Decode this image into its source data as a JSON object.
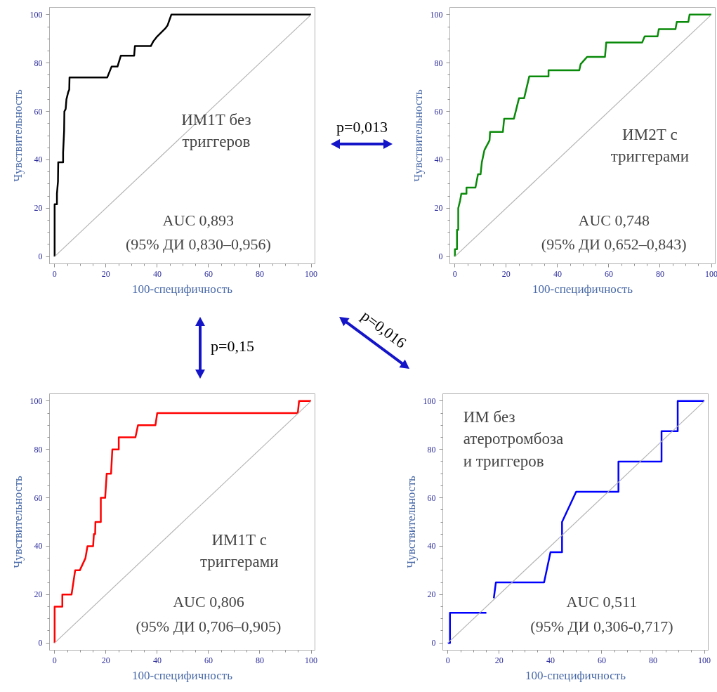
{
  "chart_data": [
    {
      "type": "line",
      "title": "ИМ1Т без\nтриггеров",
      "xlabel": "100-специфичность",
      "ylabel": "Чувствительность",
      "xlim": [
        -2,
        101.5
      ],
      "ylim": [
        -3,
        103
      ],
      "xticks": [
        0,
        20,
        40,
        60,
        80,
        100
      ],
      "yticks": [
        0,
        20,
        40,
        60,
        80,
        100
      ],
      "grid": false,
      "line_style": "solid",
      "marker": "none",
      "annotations": [
        "AUC 0,893",
        "(95% ДИ 0,830–0,956)",
        "p=0,013",
        "p=0,15",
        "p=0,016"
      ],
      "series": [
        {
          "color": "#000000",
          "x": [
            0,
            0,
            0.9,
            0.9,
            1.3,
            1.4,
            3.3,
            3.3,
            3.7,
            3.8,
            4.3,
            4.6,
            5.3,
            5.7,
            5.8,
            20.5,
            22.2,
            24.5,
            25.8,
            31,
            31.3,
            37.5,
            38.5,
            40,
            43.3,
            44,
            45.5,
            100
          ],
          "values": [
            0,
            21.6,
            21.6,
            26,
            31,
            39,
            39,
            43,
            52,
            60,
            61,
            65,
            68,
            69,
            74,
            74,
            78.5,
            78.5,
            83,
            83,
            87,
            87,
            89,
            91,
            94.5,
            95.5,
            100,
            100
          ]
        },
        {
          "color": "#b4b4b4",
          "x": [
            0,
            100
          ],
          "values": [
            0,
            100
          ]
        }
      ]
    },
    {
      "type": "line",
      "title": "ИМ2Т с\nтриггерами",
      "xlabel": "100-специфичность",
      "ylabel": "Чувствительность",
      "xlim": [
        -2,
        101.5
      ],
      "ylim": [
        -3,
        103
      ],
      "xticks": [
        0,
        20,
        40,
        60,
        80,
        100
      ],
      "yticks": [
        0,
        20,
        40,
        60,
        80,
        100
      ],
      "grid": false,
      "line_style": "solid",
      "marker": "none",
      "annotations": [
        "AUC 0,748",
        "(95% ДИ 0,652–0,843)"
      ],
      "series": [
        {
          "color": "#0a8a0a",
          "x": [
            0,
            0,
            0.8,
            0.8,
            1.3,
            1.3,
            2,
            2.5,
            4.5,
            4.5,
            8,
            9,
            10,
            10.5,
            11.5,
            13.5,
            13.7,
            18.7,
            19.2,
            23,
            25,
            27,
            29,
            36.5,
            36.5,
            48.5,
            49,
            51.5,
            58.5,
            59,
            73,
            74,
            79,
            79.5,
            86,
            86.5,
            91,
            91.5,
            100
          ],
          "values": [
            0,
            3,
            3,
            11,
            11,
            20,
            23,
            26,
            26,
            28.5,
            28.5,
            34,
            34,
            39,
            44,
            48,
            51.5,
            51.5,
            57,
            57,
            65.5,
            65.5,
            74.5,
            74.5,
            77,
            77,
            79.5,
            82.5,
            82.5,
            88.5,
            88.5,
            91,
            91,
            94,
            94,
            97,
            97,
            100,
            100
          ]
        },
        {
          "color": "#b4b4b4",
          "x": [
            0,
            100
          ],
          "values": [
            0,
            100
          ]
        }
      ]
    },
    {
      "type": "line",
      "title": "ИМ1Т с\nтриггерами",
      "xlabel": "100-специфичность",
      "ylabel": "Чувствительность",
      "xlim": [
        -2,
        101.5
      ],
      "ylim": [
        -3,
        103
      ],
      "xticks": [
        0,
        20,
        40,
        60,
        80,
        100
      ],
      "yticks": [
        0,
        20,
        40,
        60,
        80,
        100
      ],
      "grid": false,
      "line_style": "solid",
      "marker": "none",
      "annotations": [
        "AUC 0,806",
        "(95% ДИ 0,706–0,905)"
      ],
      "series": [
        {
          "color": "#ff0000",
          "x": [
            0,
            0,
            3,
            3,
            6.6,
            8,
            9.8,
            12,
            12.8,
            15,
            15.3,
            15.8,
            15.9,
            18,
            18,
            19.7,
            20.3,
            22,
            22.5,
            25,
            25,
            31.5,
            32.5,
            39.3,
            40,
            94.8,
            95.3,
            100
          ],
          "values": [
            0,
            15,
            15,
            20,
            20,
            30,
            30,
            35,
            40,
            40,
            45,
            45,
            50,
            50,
            60,
            60,
            70,
            70,
            80,
            80,
            85,
            85,
            90,
            90,
            95,
            95,
            100,
            100
          ]
        },
        {
          "color": "#b4b4b4",
          "x": [
            0,
            100
          ],
          "values": [
            0,
            100
          ]
        }
      ]
    },
    {
      "type": "line",
      "title": "ИМ без\nатеротромбоза\nи триггеров",
      "xlabel": "100-специфичность",
      "ylabel": "Чувствительность",
      "xlim": [
        -2,
        101.5
      ],
      "ylim": [
        -3,
        103
      ],
      "xticks": [
        0,
        20,
        40,
        60,
        80,
        100
      ],
      "yticks": [
        0,
        20,
        40,
        60,
        80,
        100
      ],
      "grid": false,
      "line_style": "solid",
      "marker": "none",
      "annotations": [
        "AUC 0,511",
        "(95% ДИ 0,306-0,717)"
      ],
      "series": [
        {
          "color": "#0000ff",
          "x": [
            0,
            0.8,
            0.8,
            15,
            16,
            17.9,
            18.7,
            37.5,
            40,
            44.5,
            44.5,
            50,
            66.5,
            66.5,
            83.3,
            83.3,
            89.6,
            89.6,
            100
          ],
          "values": [
            0,
            0,
            12.5,
            12.5,
            null,
            18.5,
            25,
            25,
            37.5,
            37.5,
            50,
            62.5,
            62.5,
            75,
            75,
            87.5,
            87.5,
            100,
            100
          ]
        },
        {
          "color": "#b4b4b4",
          "x": [
            0,
            100
          ],
          "values": [
            0,
            100
          ]
        }
      ]
    }
  ]
}
